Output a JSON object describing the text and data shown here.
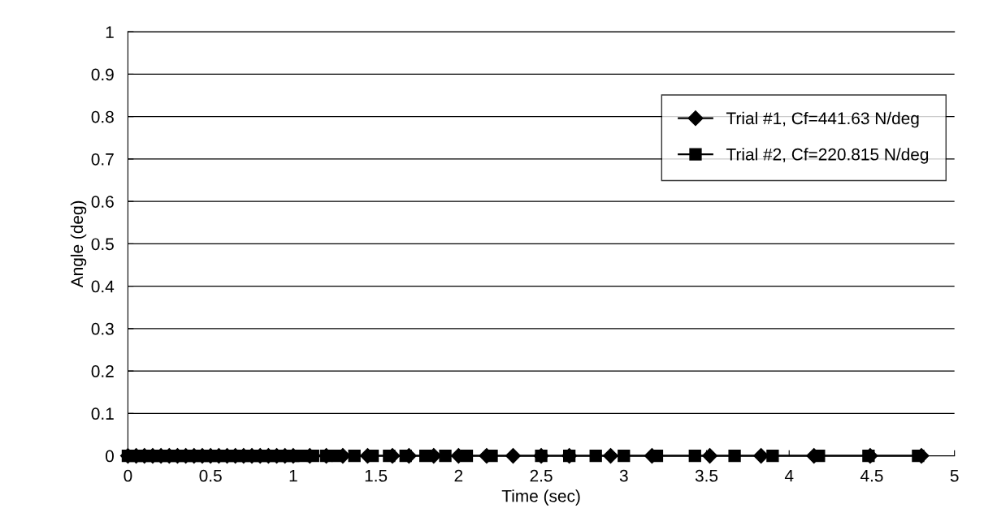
{
  "chart_data": {
    "type": "line",
    "xlabel": "Time (sec)",
    "ylabel": "Angle (deg)",
    "xlim": [
      0,
      5
    ],
    "xticks": [
      0,
      0.5,
      1,
      1.5,
      2,
      2.5,
      3,
      3.5,
      4,
      4.5,
      5
    ],
    "ylim": [
      0,
      1
    ],
    "yticks": [
      0,
      0.1,
      0.2,
      0.3,
      0.4,
      0.5,
      0.6,
      0.7,
      0.8,
      0.9,
      1
    ],
    "grid": "y",
    "legend": "right",
    "line_style": "solid",
    "series": [
      {
        "name": "Trial #1, Cf=441.63 N/deg",
        "color": "#000000",
        "marker": "diamond",
        "x": [
          0,
          0.05,
          0.1,
          0.15,
          0.2,
          0.25,
          0.3,
          0.35,
          0.4,
          0.45,
          0.5,
          0.55,
          0.6,
          0.65,
          0.7,
          0.75,
          0.8,
          0.85,
          0.9,
          0.95,
          1.0,
          1.1,
          1.2,
          1.3,
          1.45,
          1.6,
          1.7,
          1.85,
          2.0,
          2.17,
          2.33,
          2.5,
          2.67,
          2.92,
          3.17,
          3.52,
          3.83,
          4.15,
          4.49,
          4.8
        ],
        "values": [
          0,
          0,
          0,
          0,
          0,
          0,
          0,
          0,
          0,
          0,
          0,
          0,
          0,
          0,
          0,
          0,
          0,
          0,
          0,
          0,
          0,
          0,
          0,
          0,
          0,
          0,
          0,
          0,
          0,
          0,
          0,
          0,
          0,
          0,
          0,
          0,
          0,
          0,
          0,
          0
        ]
      },
      {
        "name": "Trial #2, Cf=220.815 N/deg",
        "color": "#000000",
        "marker": "square",
        "x": [
          0,
          0.05,
          0.1,
          0.15,
          0.2,
          0.25,
          0.3,
          0.35,
          0.4,
          0.45,
          0.5,
          0.55,
          0.6,
          0.65,
          0.7,
          0.75,
          0.8,
          0.85,
          0.9,
          0.95,
          1.0,
          1.05,
          1.12,
          1.2,
          1.27,
          1.37,
          1.48,
          1.58,
          1.68,
          1.8,
          1.92,
          2.05,
          2.2,
          2.5,
          2.67,
          2.83,
          3.0,
          3.2,
          3.43,
          3.67,
          3.9,
          4.18,
          4.48,
          4.78
        ],
        "values": [
          0,
          0,
          0,
          0,
          0,
          0,
          0,
          0,
          0,
          0,
          0,
          0,
          0,
          0,
          0,
          0,
          0,
          0,
          0,
          0,
          0,
          0,
          0,
          0,
          0,
          0,
          0,
          0,
          0,
          0,
          0,
          0,
          0,
          0,
          0,
          0,
          0,
          0,
          0,
          0,
          0,
          0,
          0,
          0
        ]
      }
    ]
  }
}
